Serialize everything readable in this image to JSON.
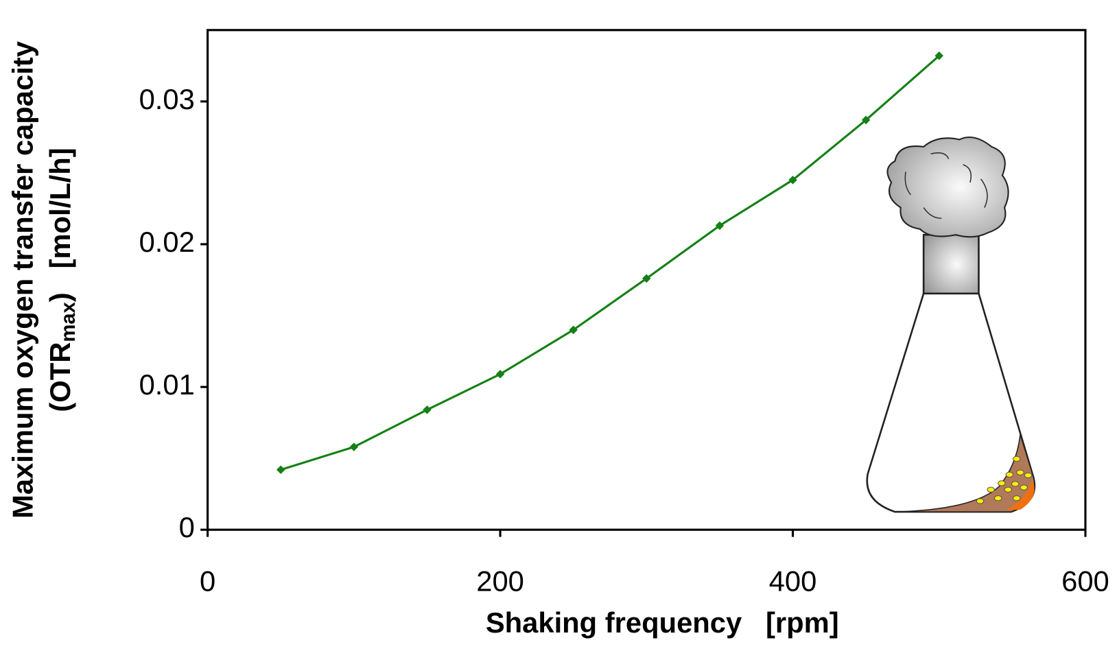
{
  "chart_data": {
    "type": "line",
    "x_label": "Shaking frequency   [rpm]",
    "y_label": {
      "line1": "Maximum oxygen transfer capacity",
      "prefix": "(OTR",
      "sub": "max",
      "suffix": ")   [mol/L/h]"
    },
    "x": [
      50,
      100,
      150,
      200,
      250,
      300,
      350,
      400,
      450,
      500
    ],
    "series": [
      {
        "color": "#158015",
        "values": [
          0.0042,
          0.0058,
          0.0084,
          0.0109,
          0.014,
          0.0176,
          0.0213,
          0.0245,
          0.0287,
          0.0332
        ]
      }
    ],
    "xlim": [
      0,
      600
    ],
    "xticks": [
      0,
      200,
      400,
      600
    ],
    "ylim": [
      0,
      0.035
    ],
    "yticks": [
      0,
      0.01,
      0.02,
      0.03
    ]
  }
}
